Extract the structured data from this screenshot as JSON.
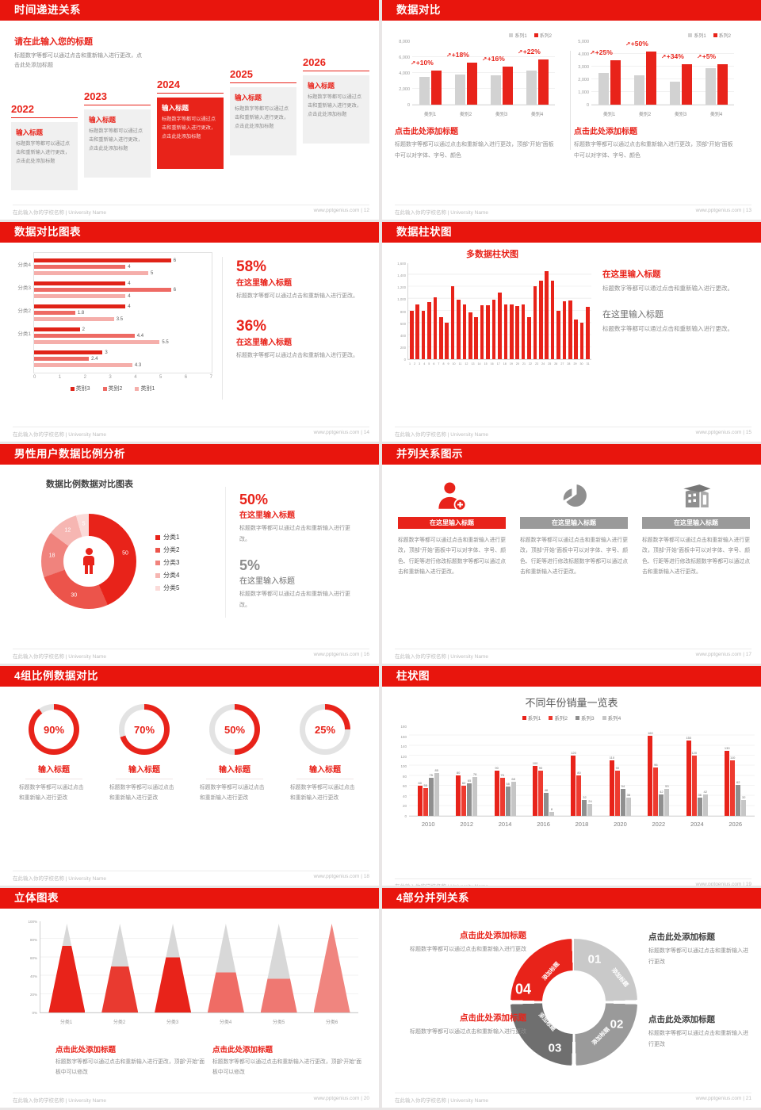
{
  "footer": {
    "school": "在此输入你的学校名称 | University Name",
    "site": "www.pptgenius.com",
    "sep": "|"
  },
  "colors": {
    "accent": "#e8150d",
    "series_red": "#e8231a",
    "series_gray": "#d2d2d2"
  },
  "slides": {
    "s12": {
      "page": "12",
      "title": "时间递进关系",
      "heading": "请在此输入您的标题",
      "intro": "标题数字等都可以通过点击和重新输入进行更改，点击此处添加标题",
      "items": [
        {
          "year": "2022",
          "box_title": "输入标题",
          "box_body": "标题数字等都可以通过点击和重新输入进行更改，点击此处添加标题",
          "highlight": false
        },
        {
          "year": "2023",
          "box_title": "输入标题",
          "box_body": "标题数字等都可以通过点击和重新输入进行更改，点击此处添加标题",
          "highlight": false
        },
        {
          "year": "2024",
          "box_title": "输入标题",
          "box_body": "标题数字等都可以通过点击和重新输入进行更改，点击此处添加标题",
          "highlight": true
        },
        {
          "year": "2025",
          "box_title": "输入标题",
          "box_body": "标题数字等都可以通过点击和重新输入进行更改，点击此处添加标题",
          "highlight": false
        },
        {
          "year": "2026",
          "box_title": "输入标题",
          "box_body": "标题数字等都可以通过点击和重新输入进行更改，点击此处添加标题",
          "highlight": false
        }
      ]
    },
    "s13": {
      "page": "13",
      "title": "数据对比",
      "sections": [
        {
          "heading": "点击此处添加标题",
          "body": "标题数字等都可以通过点击和重新输入进行更改，顶部“开始”面板中可以对字体、字号、颜色"
        },
        {
          "heading": "点击此处添加标题",
          "body": "标题数字等都可以通过点击和重新输入进行更改，顶部“开始”面板中可以对字体、字号、颜色"
        }
      ]
    },
    "s14": {
      "page": "14",
      "title": "数据对比图表",
      "stats": [
        {
          "value": "58%",
          "heading": "在这里输入标题",
          "body": "标题数字等都可以通过点击和重新输入进行更改。"
        },
        {
          "value": "36%",
          "heading": "在这里输入标题",
          "body": "标题数字等都可以通过点击和重新输入进行更改。"
        }
      ]
    },
    "s15": {
      "page": "15",
      "title": "数据柱状图",
      "sections": [
        {
          "heading": "在这里输入标题",
          "body": "标题数字等都可以通过点击和重新输入进行更改。"
        },
        {
          "heading": "在这里输入标题",
          "body": "标题数字等都可以通过点击和重新输入进行更改。"
        }
      ]
    },
    "s16": {
      "page": "16",
      "title": "男性用户数据比例分析",
      "chart_title": "数据比例数据对比图表",
      "stats": [
        {
          "value": "50%",
          "heading": "在这里输入标题",
          "body": "标题数字等都可以通过点击和重新输入进行更改。"
        },
        {
          "value": "5%",
          "heading": "在这里输入标题",
          "body": "标题数字等都可以通过点击和重新输入进行更改。"
        }
      ]
    },
    "s17": {
      "page": "17",
      "title": "并列关系图示",
      "columns": [
        {
          "icon": "nurse-icon",
          "banner": "在这里输入标题",
          "body": "标题数字等都可以通过点击和重新输入进行更改，顶部“开始”面板中可以对字体、字号、颜色、行距等进行修改标题数字等都可以通过点击和重新输入进行更改。",
          "accent": true
        },
        {
          "icon": "pie-3d-icon",
          "banner": "在这里输入标题",
          "body": "标题数字等都可以通过点击和重新输入进行更改，顶部“开始”面板中可以对字体、字号、颜色、行距等进行修改标题数字等都可以通过点击和重新输入进行更改。",
          "accent": false
        },
        {
          "icon": "building-icon",
          "banner": "在这里输入标题",
          "body": "标题数字等都可以通过点击和重新输入进行更改，顶部“开始”面板中可以对字体、字号、颜色、行距等进行修改标题数字等都可以通过点击和重新输入进行更改。",
          "accent": false
        }
      ]
    },
    "s18": {
      "page": "18",
      "title": "4组比例数据对比",
      "items": [
        {
          "percent": "90%",
          "heading": "输入标题",
          "body": "标题数字等都可以通过点击和重新输入进行更改"
        },
        {
          "percent": "70%",
          "heading": "输入标题",
          "body": "标题数字等都可以通过点击和重新输入进行更改"
        },
        {
          "percent": "50%",
          "heading": "输入标题",
          "body": "标题数字等都可以通过点击和重新输入进行更改"
        },
        {
          "percent": "25%",
          "heading": "输入标题",
          "body": "标题数字等都可以通过点击和重新输入进行更改"
        }
      ]
    },
    "s19": {
      "page": "19",
      "title": "柱状图",
      "chart_title": "不同年份销量一览表"
    },
    "s20": {
      "page": "20",
      "title": "立体图表",
      "sections": [
        {
          "heading": "点击此处添加标题",
          "body": "标题数字等都可以通过点击和重新输入进行更改，顶部“开始”面板中可以修改"
        },
        {
          "heading": "点击此处添加标题",
          "body": "标题数字等都可以通过点击和重新输入进行更改，顶部“开始”面板中可以修改"
        }
      ]
    },
    "s21": {
      "page": "21",
      "title": "4部分并列关系",
      "segments": [
        {
          "num": "01",
          "label": "添加标题",
          "color": "#c9c9c9"
        },
        {
          "num": "02",
          "label": "添加标题",
          "color": "#9a9a9a"
        },
        {
          "num": "03",
          "label": "添加标题",
          "color": "#6f6f6f"
        },
        {
          "num": "04",
          "label": "添加标题",
          "color": "#e8231a"
        }
      ],
      "blocks": [
        {
          "heading": "点击此处添加标题",
          "body": "标题数字等都可以通过点击和重新输入进行更改",
          "accent": true
        },
        {
          "heading": "点击此处添加标题",
          "body": "标题数字等都可以通过点击和重新输入进行更改",
          "accent": false
        },
        {
          "heading": "点击此处添加标题",
          "body": "标题数字等都可以通过点击和重新输入进行更改",
          "accent": true
        },
        {
          "heading": "点击此处添加标题",
          "body": "标题数字等都可以通过点击和重新输入进行更改",
          "accent": false
        }
      ]
    }
  },
  "chart_data": [
    {
      "id": "s13-left",
      "type": "bar",
      "categories": [
        "类别1",
        "类别2",
        "类别3",
        "类别4"
      ],
      "series": [
        {
          "name": "系列1",
          "color": "#d2d2d2",
          "values": [
            3500,
            3800,
            3700,
            4300
          ]
        },
        {
          "name": "系列2",
          "color": "#e8231a",
          "values": [
            4300,
            5300,
            4800,
            5700
          ]
        }
      ],
      "annotations": [
        "+10%",
        "+18%",
        "+16%",
        "+22%"
      ],
      "ylim": [
        0,
        8000
      ],
      "yticks": [
        "8,000",
        "6,000",
        "4,000",
        "2,000",
        "0"
      ],
      "grid": true,
      "legend_position": "top-right"
    },
    {
      "id": "s13-right",
      "type": "bar",
      "categories": [
        "类别1",
        "类别2",
        "类别3",
        "类别4"
      ],
      "series": [
        {
          "name": "系列1",
          "color": "#d2d2d2",
          "values": [
            2500,
            2300,
            1800,
            2900
          ]
        },
        {
          "name": "系列2",
          "color": "#e8231a",
          "values": [
            3500,
            4200,
            3200,
            3200
          ]
        }
      ],
      "annotations": [
        "+25%",
        "+50%",
        "+34%",
        "+5%"
      ],
      "ylim": [
        0,
        5000
      ],
      "yticks": [
        "5,000",
        "4,000",
        "3,000",
        "2,000",
        "1,000",
        "0"
      ],
      "grid": true,
      "legend_position": "top-right"
    },
    {
      "id": "s14",
      "type": "bar",
      "orientation": "horizontal",
      "groups": [
        {
          "label": "分类4",
          "values": [
            6,
            4,
            5
          ]
        },
        {
          "label": "分类3",
          "values": [
            4,
            6,
            4
          ]
        },
        {
          "label": "分类2",
          "values": [
            4,
            1.8,
            3.5
          ]
        },
        {
          "label": "分类1",
          "values": [
            2,
            4.4,
            5.5
          ]
        },
        {
          "label": "",
          "values": [
            3,
            2.4,
            4.3
          ]
        }
      ],
      "series_names": [
        "类别3",
        "类别2",
        "类别1"
      ],
      "series_colors": [
        "#e02318",
        "#ee6a64",
        "#f5aeaa"
      ],
      "xlim": [
        0,
        7
      ],
      "xticks": [
        "0",
        "1",
        "2",
        "3",
        "4",
        "5",
        "6",
        "7"
      ],
      "legend_position": "bottom"
    },
    {
      "id": "s15",
      "type": "bar",
      "title": "多数据柱状图",
      "x": [
        1,
        2,
        3,
        4,
        5,
        6,
        7,
        8,
        9,
        10,
        11,
        12,
        13,
        14,
        15,
        16,
        17,
        18,
        19,
        20,
        21,
        22,
        23,
        24,
        25,
        26,
        27,
        28,
        29,
        30,
        31
      ],
      "values": [
        800,
        900,
        800,
        950,
        1020,
        700,
        600,
        1210,
        980,
        900,
        780,
        700,
        890,
        890,
        990,
        1100,
        900,
        900,
        880,
        900,
        700,
        1200,
        1300,
        1450,
        1300,
        800,
        960,
        970,
        660,
        600,
        870
      ],
      "color": "#e8231a",
      "ylim": [
        0,
        1600
      ],
      "yticks": [
        "1,600",
        "1,400",
        "1,200",
        "1,000",
        "800",
        "600",
        "400",
        "200",
        "0"
      ],
      "grid": true
    },
    {
      "id": "s16",
      "type": "pie",
      "title": "数据比例数据对比图表",
      "labels": [
        "分类1",
        "分类2",
        "分类3",
        "分类4",
        "分类5"
      ],
      "values": [
        50,
        30,
        18,
        12,
        5
      ],
      "colors": [
        "#e8231a",
        "#ec544b",
        "#f0837d",
        "#f6b6b2",
        "#fbdbd9"
      ],
      "legend_position": "right"
    },
    {
      "id": "s18",
      "type": "donut-progress",
      "values": [
        90,
        70,
        50,
        25
      ],
      "color": "#e8231a",
      "track": "#e3e3e3"
    },
    {
      "id": "s19",
      "type": "bar",
      "title": "不同年份销量一览表",
      "categories": [
        "2010",
        "2012",
        "2014",
        "2016",
        "2018",
        "2020",
        "2022",
        "2024",
        "2026"
      ],
      "series": [
        {
          "name": "系列1",
          "color": "#e8231a",
          "values": [
            60,
            80,
            90,
            100,
            120,
            110,
            160,
            150,
            130
          ]
        },
        {
          "name": "系列2",
          "color": "#ee3b30",
          "values": [
            55,
            60,
            75,
            90,
            80,
            90,
            96,
            120,
            110
          ]
        },
        {
          "name": "系列3",
          "color": "#8f8f8f",
          "values": [
            75,
            65,
            58,
            46,
            32,
            54,
            42,
            36,
            62
          ]
        },
        {
          "name": "系列4",
          "color": "#c6c6c6",
          "values": [
            85,
            78,
            68,
            8,
            24,
            36,
            53,
            42,
            32
          ]
        }
      ],
      "ylim": [
        0,
        180
      ],
      "yticks": [
        "180",
        "160",
        "140",
        "120",
        "100",
        "80",
        "60",
        "40",
        "20",
        "0"
      ],
      "grid": true,
      "legend_position": "top",
      "data_labels": true
    },
    {
      "id": "s20",
      "type": "cone",
      "categories": [
        "分类1",
        "分类2",
        "分类3",
        "分类4",
        "分类5",
        "分类6"
      ],
      "fill_percent": [
        75,
        52,
        62,
        45,
        38,
        100
      ],
      "colors": [
        "#e8231a",
        "#e93a30",
        "#e8231a",
        "#ef6c65",
        "#ef7872",
        "#f0857f"
      ],
      "top_color": "#d8d8d8",
      "yticks": [
        "100%",
        "80%",
        "60%",
        "40%",
        "20%",
        "0%"
      ],
      "grid": true
    }
  ]
}
